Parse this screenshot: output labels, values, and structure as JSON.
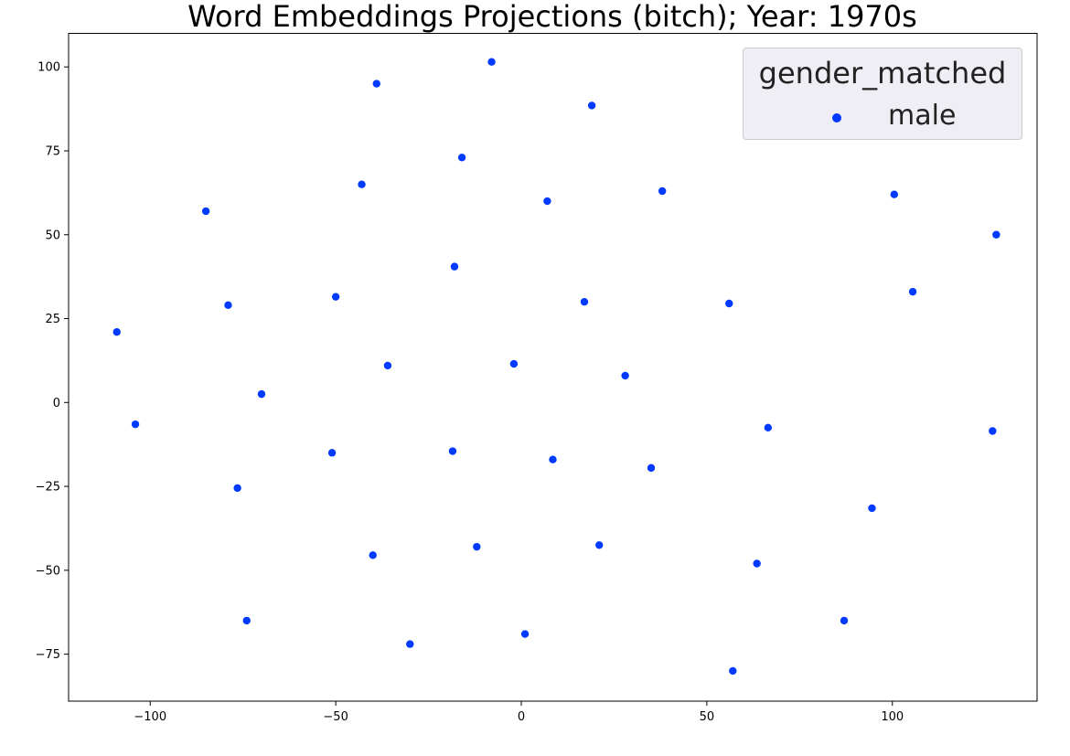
{
  "chart_data": {
    "type": "scatter",
    "title": "Word Embeddings Projections (bitch); Year: 1970s",
    "xlabel": "",
    "ylabel": "",
    "xlim": [
      -122,
      139
    ],
    "ylim": [
      -89,
      110
    ],
    "xticks": [
      -100,
      -50,
      0,
      50,
      100
    ],
    "yticks": [
      -75,
      -50,
      -25,
      0,
      25,
      50,
      75,
      100
    ],
    "grid": false,
    "legend": {
      "title": "gender_matched",
      "placement": "top-right",
      "entries": [
        "male"
      ]
    },
    "series": [
      {
        "name": "male",
        "color": "#0039ff",
        "points": [
          [
            -8,
            101.5
          ],
          [
            -39,
            95
          ],
          [
            19,
            88.5
          ],
          [
            -16,
            73
          ],
          [
            -43,
            65
          ],
          [
            38,
            63
          ],
          [
            7,
            60
          ],
          [
            100.5,
            62
          ],
          [
            -85,
            57
          ],
          [
            128,
            50
          ],
          [
            -18,
            40.5
          ],
          [
            -50,
            31.5
          ],
          [
            17,
            30
          ],
          [
            -79,
            29
          ],
          [
            56,
            29.5
          ],
          [
            105.5,
            33
          ],
          [
            -109,
            21
          ],
          [
            -36,
            11
          ],
          [
            -2,
            11.5
          ],
          [
            28,
            8
          ],
          [
            -70,
            2.5
          ],
          [
            -104,
            -6.5
          ],
          [
            66.5,
            -7.5
          ],
          [
            127,
            -8.5
          ],
          [
            -51,
            -15
          ],
          [
            -18.5,
            -14.5
          ],
          [
            8.5,
            -17
          ],
          [
            35,
            -19.5
          ],
          [
            -76.5,
            -25.5
          ],
          [
            94.5,
            -31.5
          ],
          [
            -40,
            -45.5
          ],
          [
            -12,
            -43
          ],
          [
            21,
            -42.5
          ],
          [
            63.5,
            -48
          ],
          [
            -74,
            -65
          ],
          [
            87,
            -65
          ],
          [
            -30,
            -72
          ],
          [
            1,
            -69
          ],
          [
            57,
            -80
          ]
        ]
      }
    ]
  }
}
